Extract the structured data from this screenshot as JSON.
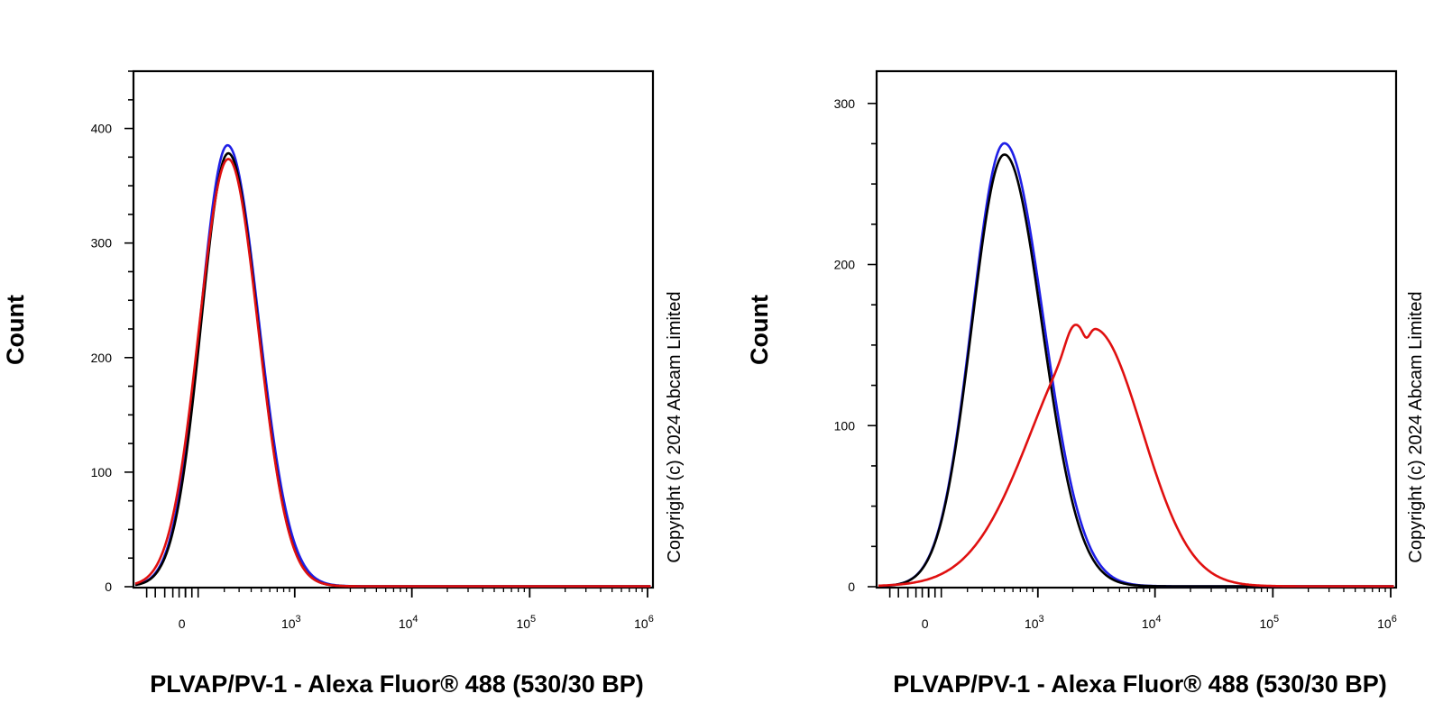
{
  "chart_data": [
    {
      "type": "line",
      "panel": "left",
      "title": "",
      "xlabel": "PLVAP/PV-1 - Alexa Fluor® 488 (530/30 BP)",
      "ylabel": "Count",
      "x_scale": "biexponential",
      "ylim": [
        0,
        450
      ],
      "y_ticks": [
        0,
        100,
        200,
        300,
        400
      ],
      "x_ticks": [
        {
          "label": "0"
        },
        {
          "base": "10",
          "exp": "3"
        },
        {
          "base": "10",
          "exp": "4"
        },
        {
          "base": "10",
          "exp": "5"
        },
        {
          "base": "10",
          "exp": "6"
        }
      ],
      "copyright": "Copyright (c) 2024 Abcam Limited",
      "series": [
        {
          "name": "blue",
          "color": "#1f1fe6",
          "peak_x": 220,
          "peak_count": 385,
          "width_left": 0.42,
          "width_right": 0.48
        },
        {
          "name": "black",
          "color": "#000000",
          "peak_x": 225,
          "peak_count": 378,
          "width_left": 0.42,
          "width_right": 0.46
        },
        {
          "name": "red",
          "color": "#e01010",
          "peak_x": 225,
          "peak_count": 373,
          "width_left": 0.45,
          "width_right": 0.46
        }
      ]
    },
    {
      "type": "line",
      "panel": "right",
      "title": "",
      "xlabel": "PLVAP/PV-1 - Alexa Fluor® 488 (530/30 BP)",
      "ylabel": "Count",
      "x_scale": "biexponential",
      "ylim": [
        0,
        320
      ],
      "y_ticks": [
        0,
        100,
        200,
        300
      ],
      "x_ticks": [
        {
          "label": "0"
        },
        {
          "base": "10",
          "exp": "3"
        },
        {
          "base": "10",
          "exp": "4"
        },
        {
          "base": "10",
          "exp": "5"
        },
        {
          "base": "10",
          "exp": "6"
        }
      ],
      "copyright": "Copyright (c) 2024 Abcam Limited",
      "series": [
        {
          "name": "blue",
          "color": "#1f1fe6",
          "peak_x": 500,
          "peak_count": 275,
          "width_left": 0.5,
          "width_right": 0.6
        },
        {
          "name": "black",
          "color": "#000000",
          "peak_x": 500,
          "peak_count": 268,
          "width_left": 0.5,
          "width_right": 0.58
        },
        {
          "name": "red",
          "color": "#e01010",
          "peak_x": 3000,
          "peak_count": 160,
          "width_left": 0.95,
          "width_right": 0.75
        }
      ]
    }
  ]
}
